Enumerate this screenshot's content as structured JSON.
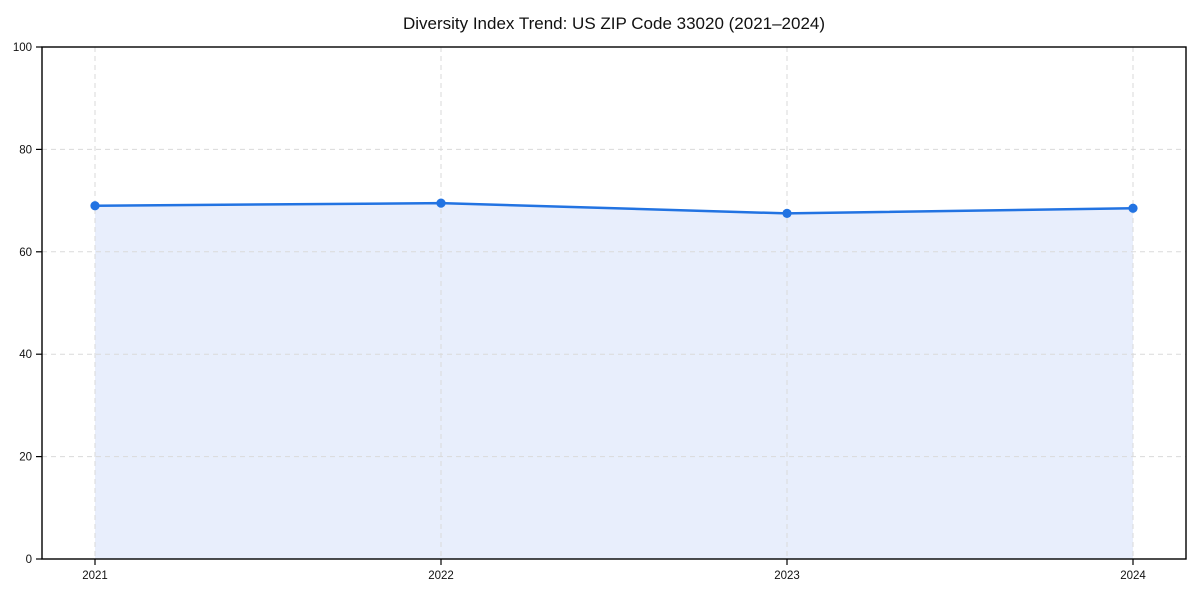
{
  "chart_data": {
    "type": "area",
    "title": "Diversity Index Trend: US ZIP Code 33020 (2021–2024)",
    "categories": [
      "2021",
      "2022",
      "2023",
      "2024"
    ],
    "series": [
      {
        "name": "Diversity Index",
        "values": [
          69.0,
          69.5,
          67.5,
          68.5
        ]
      }
    ],
    "xlabel": "",
    "ylabel": "",
    "ylim": [
      0,
      100
    ],
    "yticks": [
      0,
      20,
      40,
      60,
      80,
      100
    ],
    "grid": true,
    "grid_style": "dashed",
    "legend_position": "none",
    "colors": {
      "line": "#2273e2",
      "marker": "#2273e2",
      "area_fill": "#e8eefc",
      "grid": "#dadada",
      "axis": "#000000",
      "text": "#111111",
      "background": "#ffffff"
    }
  }
}
